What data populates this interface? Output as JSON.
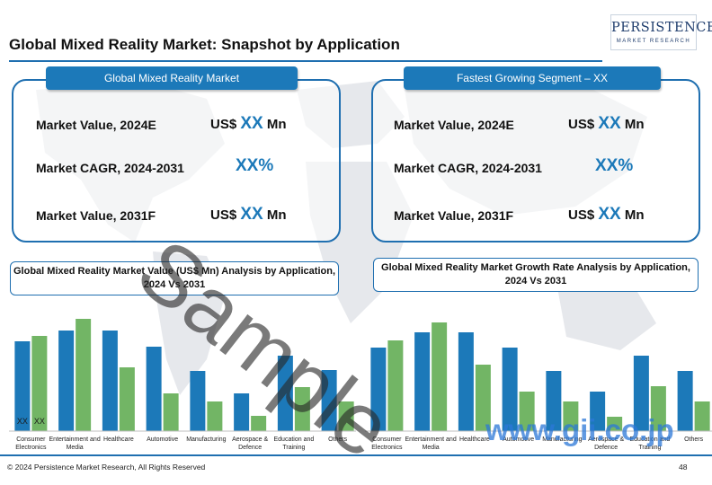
{
  "page": {
    "title": "Global Mixed Reality Market: Snapshot by Application",
    "logo": {
      "main": "PERSISTENCE",
      "sub": "MARKET RESEARCH"
    },
    "footer": {
      "copyright": "© 2024 Persistence Market Research, All Rights Reserved",
      "page_number": "48"
    },
    "watermark": "Sample",
    "watermark_site": "www.gii.co.jp",
    "colors": {
      "accent_blue": "#1c79b9",
      "bar_green": "#72b565",
      "border_blue": "#1f6fb0"
    }
  },
  "panels": [
    {
      "header": "Global Mixed Reality Market",
      "rows": [
        {
          "label": "Market Value, 2024E",
          "prefix": "US$ ",
          "value": "XX",
          "suffix": " Mn"
        },
        {
          "label": "Market CAGR, 2024-2031",
          "prefix": "",
          "value": "XX%",
          "suffix": ""
        },
        {
          "label": "Market Value, 2031F",
          "prefix": "US$ ",
          "value": "XX",
          "suffix": " Mn"
        }
      ]
    },
    {
      "header": "Fastest Growing Segment – XX",
      "rows": [
        {
          "label": "Market Value, 2024E",
          "prefix": "US$ ",
          "value": "XX",
          "suffix": " Mn"
        },
        {
          "label": "Market CAGR, 2024-2031",
          "prefix": "",
          "value": "XX%",
          "suffix": ""
        },
        {
          "label": "Market Value, 2031F",
          "prefix": "US$ ",
          "value": "XX",
          "suffix": " Mn"
        }
      ]
    }
  ],
  "chart_data": [
    {
      "type": "bar",
      "title": "Global Mixed Reality Market Value (US$ Mn) Analysis by Application, 2024 Vs 2031",
      "categories": [
        "Consumer Electronics",
        "Entertainment and Media",
        "Healthcare",
        "Automotive",
        "Manufacturing",
        "Aerospace & Defence",
        "Education and Training",
        "Others"
      ],
      "series": [
        {
          "name": "2024",
          "color": "#1c79b9",
          "values": [
            100,
            112,
            112,
            94,
            67,
            42,
            84,
            68
          ]
        },
        {
          "name": "2031",
          "color": "#72b565",
          "values": [
            106,
            125,
            71,
            42,
            33,
            17,
            49,
            33
          ]
        }
      ],
      "bar_labels": [
        "XX",
        "XX"
      ],
      "ylim": [
        0,
        130
      ],
      "grid": false
    },
    {
      "type": "bar",
      "title": "Global Mixed Reality Market Growth Rate Analysis by Application, 2024 Vs 2031",
      "categories": [
        "Consumer Electronics",
        "Entertainment and Media",
        "Healthcare",
        "Automotive",
        "Manufacturing",
        "Aerospace & Defence",
        "Education and Training",
        "Others"
      ],
      "series": [
        {
          "name": "2024",
          "color": "#1c79b9",
          "values": [
            93,
            110,
            110,
            93,
            67,
            44,
            84,
            67
          ]
        },
        {
          "name": "2031",
          "color": "#72b565",
          "values": [
            101,
            121,
            74,
            44,
            33,
            16,
            50,
            33
          ]
        }
      ],
      "ylim": [
        0,
        130
      ],
      "grid": false
    }
  ]
}
